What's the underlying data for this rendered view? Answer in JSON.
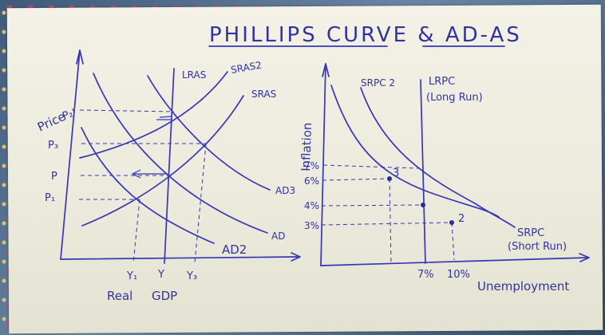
{
  "title": "PHILLIPS CURVE & AD-AS",
  "left_diagram": {
    "y_axis_label": "Price",
    "x_axis_label_1": "Real",
    "x_axis_label_2": "GDP",
    "price_labels": [
      "P₂'",
      "P₃",
      "P",
      "P₁"
    ],
    "output_labels": [
      "Y₁",
      "Y",
      "Y₃"
    ],
    "curves": {
      "lras": "LRAS",
      "sras2": "SRAS2",
      "sras": "SRAS",
      "ad3": "AD3",
      "ad": "AD",
      "ad2": "AD2"
    }
  },
  "right_diagram": {
    "y_axis_label": "Inflation",
    "x_axis_label": "Unemployment",
    "inflation_labels": [
      "7%",
      "6%",
      "4%",
      "3%"
    ],
    "unemployment_labels": [
      "7%",
      "10%"
    ],
    "curves": {
      "srpc2": "SRPC 2",
      "lrpc": "LRPC",
      "lrpc_note": "(Long Run)",
      "srpc": "SRPC",
      "srpc_note": "(Short Run)"
    },
    "points": [
      "3",
      "2"
    ]
  },
  "colors": {
    "ink": "#3737b5",
    "paper": "#f0eee2"
  }
}
